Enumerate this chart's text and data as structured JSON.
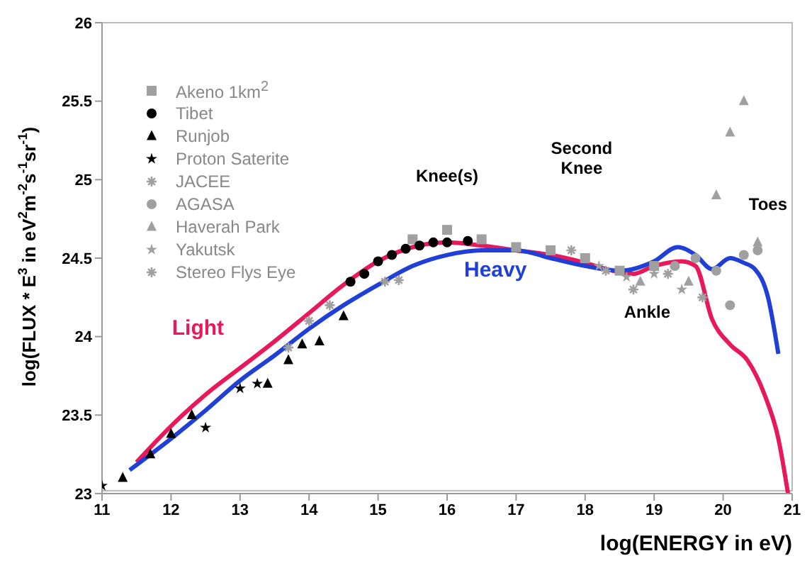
{
  "chart_data": {
    "type": "line",
    "xlabel": "log(ENERGY in eV)",
    "ylabel": "log(FLUX * E$^{3}$ in eV$^{2}$m$^{-2}$s$^{-1}$sr$^{-1}$)",
    "xlim": [
      11,
      21
    ],
    "xticks": [
      11,
      12,
      13,
      14,
      15,
      16,
      17,
      18,
      19,
      20,
      21
    ],
    "ylim": [
      23,
      26
    ],
    "yticks": [
      23,
      23.5,
      24,
      24.5,
      25,
      25.5,
      26
    ],
    "grid": false,
    "legend": "top left",
    "series": [
      {
        "name": "Light",
        "color": "#e8195a",
        "line_style": "solid",
        "marker": "none",
        "x": [
          11.5,
          12,
          12.5,
          13,
          13.5,
          14,
          14.5,
          15,
          15.5,
          16,
          16.5,
          17,
          17.5,
          18,
          18.4,
          18.7,
          19,
          19.4,
          19.6,
          19.84,
          20.1,
          20.35,
          20.6,
          20.8,
          20.94
        ],
        "values": [
          23.2,
          23.43,
          23.63,
          23.8,
          23.97,
          24.15,
          24.33,
          24.48,
          24.57,
          24.6,
          24.58,
          24.55,
          24.52,
          24.47,
          24.42,
          24.4,
          24.45,
          24.48,
          24.45,
          24.11,
          23.95,
          23.85,
          23.63,
          23.35,
          23.0
        ]
      },
      {
        "name": "Heavy",
        "color": "#1f3fd6",
        "line_style": "solid",
        "marker": "none",
        "x": [
          11.4,
          12,
          12.5,
          13,
          13.5,
          14,
          14.5,
          15,
          15.5,
          16,
          16.5,
          17,
          17.5,
          18,
          18.5,
          19,
          19.34,
          19.6,
          19.84,
          20.1,
          20.3,
          20.46,
          20.65,
          20.8
        ],
        "values": [
          23.15,
          23.35,
          23.53,
          23.72,
          23.88,
          24.05,
          24.2,
          24.33,
          24.45,
          24.52,
          24.55,
          24.55,
          24.5,
          24.45,
          24.42,
          24.48,
          24.57,
          24.52,
          24.43,
          24.5,
          24.47,
          24.43,
          24.25,
          23.89
        ]
      },
      {
        "name": "Akeno 1km$^{2}$",
        "type": "scatter",
        "marker": "square",
        "color": "#a0a0a0",
        "x": [
          15.5,
          16,
          16.5,
          17,
          17.5,
          18,
          18.5,
          19
        ],
        "values": [
          24.62,
          24.68,
          24.62,
          24.57,
          24.55,
          24.5,
          24.42,
          24.45
        ]
      },
      {
        "name": "Tibet",
        "type": "scatter",
        "marker": "circle",
        "color": "#000000",
        "x": [
          14.6,
          14.8,
          15,
          15.2,
          15.4,
          15.6,
          15.8,
          16,
          16.3
        ],
        "values": [
          24.35,
          24.4,
          24.48,
          24.52,
          24.56,
          24.58,
          24.6,
          24.6,
          24.61
        ]
      },
      {
        "name": "Runjob",
        "type": "scatter",
        "marker": "triangle",
        "color": "#000000",
        "x": [
          11.3,
          11.7,
          12,
          12.3,
          13.4,
          13.7,
          13.9,
          14.15,
          14.5
        ],
        "values": [
          23.1,
          23.25,
          23.38,
          23.5,
          23.7,
          23.85,
          23.95,
          23.97,
          24.13
        ]
      },
      {
        "name": "Proton Saterite",
        "type": "scatter",
        "marker": "star",
        "color": "#000000",
        "x": [
          11,
          12.5,
          13,
          13.25
        ],
        "values": [
          23.05,
          23.42,
          23.67,
          23.7
        ]
      },
      {
        "name": "JACEE",
        "type": "scatter",
        "marker": "cross",
        "color": "#a0a0a0",
        "x": [
          13.7,
          14,
          14.3,
          15.1,
          15.3
        ],
        "values": [
          23.93,
          24.1,
          24.2,
          24.35,
          24.36
        ]
      },
      {
        "name": "AGASA",
        "type": "scatter",
        "marker": "circle",
        "color": "#a0a0a0",
        "x": [
          19.3,
          19.6,
          19.9,
          20.1,
          20.3,
          20.5
        ],
        "values": [
          24.45,
          24.5,
          24.42,
          24.2,
          24.52,
          24.55
        ]
      },
      {
        "name": "Haverah Park",
        "type": "scatter",
        "marker": "triangle",
        "color": "#a0a0a0",
        "x": [
          18.8,
          19.5,
          19.9,
          20.1,
          20.3,
          20.5
        ],
        "values": [
          24.35,
          24.35,
          24.9,
          25.3,
          25.5,
          24.6
        ]
      },
      {
        "name": "Yakutsk",
        "type": "scatter",
        "marker": "star",
        "color": "#a0a0a0",
        "x": [
          18.2,
          18.6,
          19,
          19.4
        ],
        "values": [
          24.45,
          24.38,
          24.4,
          24.3
        ]
      },
      {
        "name": "Stereo Flys Eye",
        "type": "scatter",
        "marker": "cross",
        "color": "#a0a0a0",
        "x": [
          17.8,
          18.3,
          18.7,
          19.2,
          19.7
        ],
        "values": [
          24.55,
          24.42,
          24.3,
          24.4,
          24.25
        ]
      }
    ],
    "annotations": [
      "Knee(s)",
      "Second Knee",
      "Ankle",
      "Toes"
    ]
  }
}
